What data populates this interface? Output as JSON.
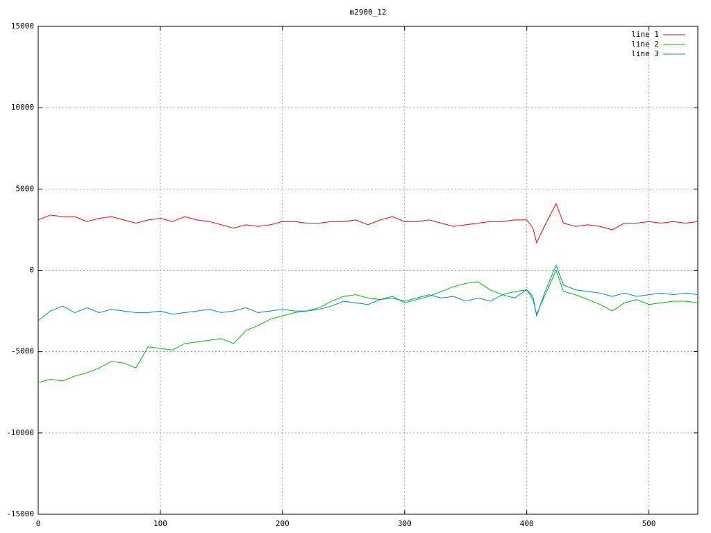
{
  "chart_data": {
    "type": "line",
    "title": "m2900_12",
    "x": [
      0,
      10,
      20,
      30,
      40,
      50,
      60,
      70,
      80,
      90,
      100,
      110,
      120,
      130,
      140,
      150,
      160,
      170,
      180,
      190,
      200,
      210,
      220,
      230,
      240,
      250,
      260,
      270,
      280,
      290,
      300,
      310,
      320,
      330,
      340,
      350,
      360,
      370,
      380,
      390,
      400,
      405,
      408,
      415,
      424,
      430,
      440,
      450,
      460,
      470,
      480,
      490,
      500,
      510,
      520,
      530,
      540
    ],
    "series": [
      {
        "name": "line 1",
        "color": "#ff0000",
        "values": [
          3100,
          3400,
          3300,
          3300,
          3000,
          3200,
          3300,
          3100,
          2900,
          3100,
          3200,
          3000,
          3300,
          3100,
          3000,
          2800,
          2600,
          2800,
          2700,
          2800,
          3000,
          3000,
          2900,
          2900,
          3000,
          3000,
          3100,
          2800,
          3100,
          3300,
          3000,
          3000,
          3100,
          2900,
          2700,
          2800,
          2900,
          3000,
          3000,
          3100,
          3100,
          2600,
          1700,
          2800,
          4100,
          2900,
          2700,
          2800,
          2700,
          2500,
          2900,
          2900,
          3000,
          2900,
          3000,
          2900,
          3000
        ]
      },
      {
        "name": "line 2",
        "color": "#00c000",
        "values": [
          -6900,
          -6700,
          -6800,
          -6500,
          -6300,
          -6000,
          -5600,
          -5700,
          -6000,
          -4700,
          -4800,
          -4900,
          -4500,
          -4400,
          -4300,
          -4200,
          -4500,
          -3700,
          -3400,
          -3000,
          -2800,
          -2600,
          -2500,
          -2300,
          -1900,
          -1600,
          -1500,
          -1700,
          -1800,
          -1600,
          -2000,
          -1800,
          -1600,
          -1300,
          -1000,
          -800,
          -700,
          -1200,
          -1500,
          -1300,
          -1200,
          -1800,
          -2700,
          -1500,
          0,
          -1300,
          -1500,
          -1800,
          -2100,
          -2500,
          -2000,
          -1800,
          -2100,
          -2000,
          -1900,
          -1900,
          -2000
        ]
      },
      {
        "name": "line 3",
        "color": "#0080ff",
        "values": [
          -3100,
          -2500,
          -2200,
          -2600,
          -2300,
          -2600,
          -2400,
          -2500,
          -2600,
          -2600,
          -2500,
          -2700,
          -2600,
          -2500,
          -2400,
          -2600,
          -2500,
          -2300,
          -2600,
          -2500,
          -2400,
          -2500,
          -2500,
          -2400,
          -2200,
          -1900,
          -2000,
          -2100,
          -1800,
          -1700,
          -1900,
          -1700,
          -1500,
          -1700,
          -1600,
          -1900,
          -1700,
          -1900,
          -1500,
          -1700,
          -1200,
          -1600,
          -2800,
          -1300,
          300,
          -900,
          -1200,
          -1300,
          -1400,
          -1600,
          -1400,
          -1600,
          -1500,
          -1400,
          -1500,
          -1400,
          -1500
        ]
      }
    ],
    "xlim": [
      0,
      540
    ],
    "ylim": [
      -15000,
      15000
    ],
    "xticks": [
      0,
      100,
      200,
      300,
      400,
      500
    ],
    "yticks": [
      -15000,
      -10000,
      -5000,
      0,
      5000,
      10000,
      15000
    ],
    "grid": true,
    "legend": "top-right"
  }
}
